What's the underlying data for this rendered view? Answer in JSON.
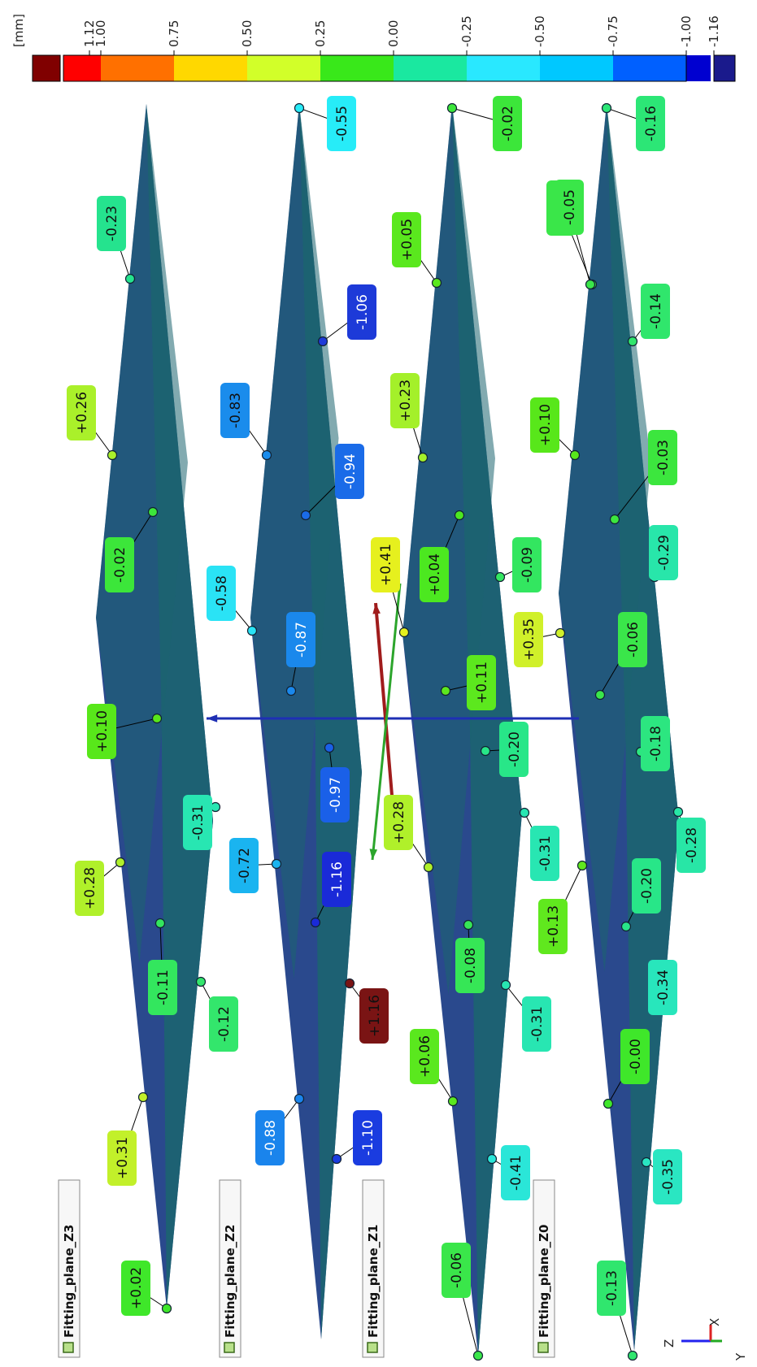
{
  "colors": {
    "plane_dark": "#1f3f87",
    "plane_teal": "#1c6470",
    "leader": "#000000",
    "arrow_blue": "#1e2fb4",
    "arrow_red": "#a01c1c",
    "arrow_green": "#2ca52c"
  },
  "colorbar": {
    "unit": "[mm]",
    "ticks": [
      "1.12",
      "1.00",
      "0.75",
      "0.50",
      "0.25",
      "0.00",
      "-0.25",
      "-0.50",
      "-0.75",
      "-1.00",
      "-1.16"
    ],
    "segment_colors": [
      "#800000",
      "#ff0000",
      "#ff7000",
      "#ffd800",
      "#d2ff29",
      "#39e81a",
      "#1ae8a0",
      "#29e8ff",
      "#00c8ff",
      "#0060ff",
      "#0000d0",
      "#1a1a8c"
    ]
  },
  "planes": [
    {
      "name": "Fitting_plane_Z3"
    },
    {
      "name": "Fitting_plane_Z2"
    },
    {
      "name": "Fitting_plane_Z1"
    },
    {
      "name": "Fitting_plane_Z0"
    }
  ],
  "deviations": [
    {
      "text": "-0.23",
      "color": "#25e38e"
    },
    {
      "text": "+0.26",
      "color": "#aaf02a"
    },
    {
      "text": "-0.02",
      "color": "#3ce63a"
    },
    {
      "text": "+0.10",
      "color": "#58e71a"
    },
    {
      "text": "-0.31",
      "color": "#28e6b2"
    },
    {
      "text": "+0.28",
      "color": "#b0f02a"
    },
    {
      "text": "-0.11",
      "color": "#33e65e"
    },
    {
      "text": "-0.12",
      "color": "#33e66c"
    },
    {
      "text": "+0.31",
      "color": "#c2f02a"
    },
    {
      "text": "+0.02",
      "color": "#3fe72a"
    },
    {
      "text": "-0.55",
      "color": "#27ecf8"
    },
    {
      "text": "-1.06",
      "color": "#1d3ad8"
    },
    {
      "text": "-0.83",
      "color": "#1a8cec"
    },
    {
      "text": "-0.94",
      "color": "#1a6be8"
    },
    {
      "text": "-0.58",
      "color": "#2ae3f5"
    },
    {
      "text": "-0.87",
      "color": "#1a88ec"
    },
    {
      "text": "-0.97",
      "color": "#1a60e8"
    },
    {
      "text": "-0.72",
      "color": "#1ab4f0"
    },
    {
      "text": "-1.16",
      "color": "#1a2ad8"
    },
    {
      "text": "+1.16",
      "color": "#7a1414"
    },
    {
      "text": "-0.88",
      "color": "#1a84ec"
    },
    {
      "text": "-1.10",
      "color": "#1a3ce0"
    },
    {
      "text": "-0.02",
      "color": "#3ce63a"
    },
    {
      "text": "+0.05",
      "color": "#5ae81e"
    },
    {
      "text": "-0.05",
      "color": "#3ae649"
    },
    {
      "text": "+0.23",
      "color": "#a4f02a"
    },
    {
      "text": "+0.41",
      "color": "#e6f01e"
    },
    {
      "text": "+0.04",
      "color": "#4ce820"
    },
    {
      "text": "-0.09",
      "color": "#33e660"
    },
    {
      "text": "+0.11",
      "color": "#5ce81e"
    },
    {
      "text": "-0.20",
      "color": "#28e688"
    },
    {
      "text": "+0.28",
      "color": "#b0f02a"
    },
    {
      "text": "-0.31",
      "color": "#28e6b2"
    },
    {
      "text": "-0.08",
      "color": "#36e656"
    },
    {
      "text": "-0.31",
      "color": "#28e6b2"
    },
    {
      "text": "+0.06",
      "color": "#5ae81e"
    },
    {
      "text": "-0.41",
      "color": "#2ae6d8"
    },
    {
      "text": "-0.06",
      "color": "#3ae64a"
    },
    {
      "text": "-0.16",
      "color": "#2ce676"
    },
    {
      "text": "-0.05",
      "color": "#3ae649"
    },
    {
      "text": "-0.14",
      "color": "#30e66c"
    },
    {
      "text": "+0.10",
      "color": "#58e71a"
    },
    {
      "text": "-0.03",
      "color": "#3ce63e"
    },
    {
      "text": "-0.29",
      "color": "#28e6aa"
    },
    {
      "text": "+0.35",
      "color": "#d0f02a"
    },
    {
      "text": "-0.06",
      "color": "#3ae64a"
    },
    {
      "text": "-0.18",
      "color": "#2ce680"
    },
    {
      "text": "-0.28",
      "color": "#28e6a6"
    },
    {
      "text": "+0.13",
      "color": "#60e81e"
    },
    {
      "text": "-0.20",
      "color": "#28e688"
    },
    {
      "text": "-0.34",
      "color": "#28e6bc"
    },
    {
      "text": "-0.00",
      "color": "#3fe72a"
    },
    {
      "text": "-0.35",
      "color": "#2ae6c2"
    },
    {
      "text": "-0.13",
      "color": "#30e66e"
    }
  ],
  "triad": {
    "z": "Z",
    "x": "X",
    "y": "Y"
  }
}
